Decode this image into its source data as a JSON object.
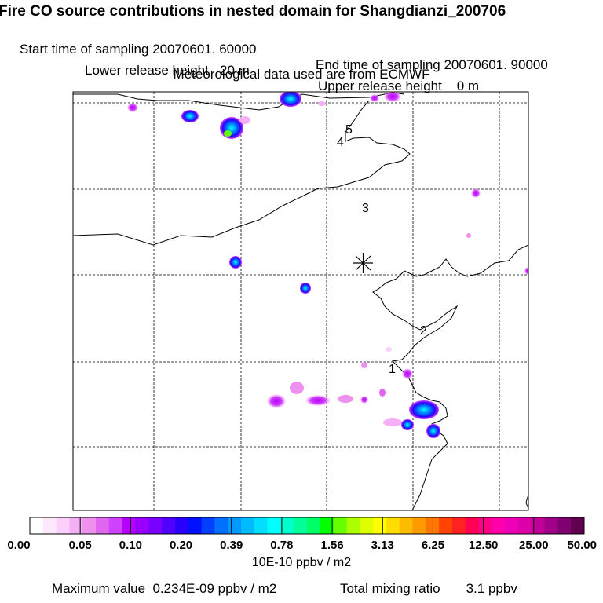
{
  "header": {
    "title": "Fire CO source contributions in nested domain for Shangdianzi_200706",
    "start_label": "Start time of sampling 20070601. 60000",
    "end_label": "End time of sampling 20070601. 90000",
    "lower_label": "Lower release height   20 m",
    "upper_label": "Upper release height    0 m",
    "met_label": "Meteorological data used are from ECMWF"
  },
  "map": {
    "station_symbol": "asterisk-icon",
    "region_labels": [
      "1",
      "2",
      "3",
      "4",
      "5"
    ]
  },
  "colorbar": {
    "tick_labels": [
      "0.00",
      "0.05",
      "0.10",
      "0.20",
      "0.39",
      "0.78",
      "1.56",
      "3.13",
      "6.25",
      "12.50",
      "25.00",
      "50.00"
    ],
    "colors": [
      "#ffffff",
      "#fde8fd",
      "#fbd0fb",
      "#f5b0f5",
      "#ee90ee",
      "#e066f0",
      "#d040ff",
      "#b800ff",
      "#9a00ff",
      "#7a00ff",
      "#5000ff",
      "#2a00ff",
      "#0010ff",
      "#0040ff",
      "#0070ff",
      "#0099ff",
      "#00bbff",
      "#00ddff",
      "#00ffff",
      "#00ffcc",
      "#00ff99",
      "#00ff66",
      "#00ff00",
      "#66ff00",
      "#aaff00",
      "#ddff00",
      "#ffff00",
      "#ffdd00",
      "#ffbb00",
      "#ff9900",
      "#ff7700",
      "#ff4400",
      "#ff2222",
      "#ff0055",
      "#ff0088",
      "#ff00aa",
      "#ee00bb",
      "#dd00aa",
      "#c00099",
      "#a00088",
      "#800070",
      "#600050"
    ],
    "unit_label": "10E-10 ppbv / m2"
  },
  "footer": {
    "max_label": "Maximum value  0.234E-09 ppbv / m2",
    "total_label": "Total mixing ratio       3.1 ppbv"
  }
}
